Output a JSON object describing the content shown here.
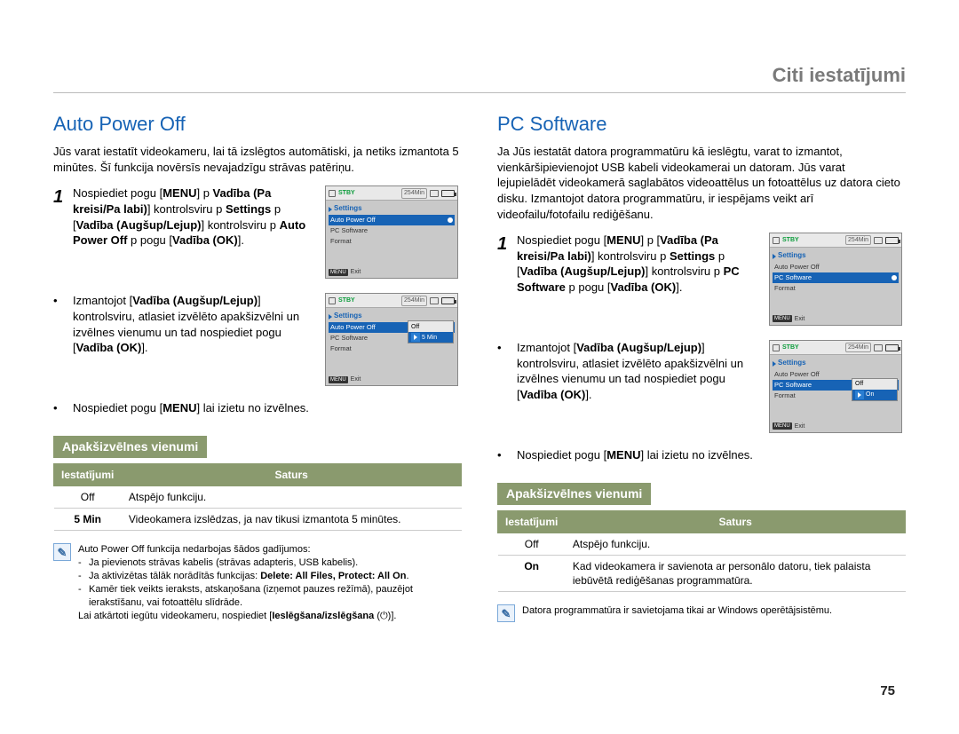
{
  "breadcrumb": "Citi iestatījumi",
  "page_number": "75",
  "colors": {
    "heading_blue": "#1763b5",
    "badge_green": "#8a9a6e",
    "note_border": "#7aa8d8",
    "note_fill": "#eaf2fb",
    "screen_bg": "#c9c9c9",
    "screen_topbar": "#e9e9e9",
    "stby_green": "#0a9c3a",
    "highlight_blue": "#1763b5",
    "text": "#000000",
    "rule": "#bbbbbb"
  },
  "left": {
    "title": "Auto Power Off",
    "intro": "Jūs varat iestatīt videokameru, lai tā izslēgtos automātiski, ja netiks izmantota 5 minūtes. Šī funkcija novērsīs nevajadzīgu strāvas patēriņu.",
    "steps": [
      {
        "num": "1",
        "boldSeq": [
          "Nospiediet pogu [",
          "MENU",
          "]  p ",
          "Vadība (Pa kreisi/Pa labi)",
          "] kontrolsviru  p ",
          "Settings",
          "  p [",
          "Vadība (Augšup/Lejup)",
          "] kontrolsviru  p ",
          "Auto Power Off",
          "  p pogu [",
          "Vadība (OK)",
          "]."
        ]
      },
      {
        "bullet": "•",
        "boldSeq": [
          "Izmantojot [",
          "Vadība (Augšup/Lejup)",
          "] kontrolsviru, atlasiet izvēlēto apakšizvēlni un izvēlnes vienumu un tad nospiediet pogu [",
          "Vadība (OK)",
          "]."
        ]
      },
      {
        "bullet": "•",
        "boldSeq": [
          "Nospiediet pogu [",
          "MENU",
          "] lai izietu no izvēlnes."
        ]
      }
    ],
    "sub_title": "Apakšizvēlnes vienumi",
    "table": {
      "headers": [
        "Iestatījumi",
        "Saturs"
      ],
      "rows": [
        [
          "Off",
          "Atspējo funkciju."
        ],
        [
          "5 Min",
          "Videokamera izslēdzas, ja nav tikusi izmantota 5 minūtes."
        ]
      ]
    },
    "note": {
      "lead": "Auto Power Off funkcija nedarbojas šādos gadījumos:",
      "items": [
        "Ja pievienots strāvas kabelis (strāvas adapteris, USB kabelis).",
        {
          "pre": "Ja aktivizētas tālāk norādītās funkcijas: ",
          "bold": "Delete: All Files, Protect: All On",
          "post": "."
        },
        "Kamēr tiek veikts ieraksts, atskaņošana (izņemot pauzes režīmā), pauzējot ierakstīšanu, vai fotoattēlu slīdrāde."
      ],
      "tail_pre": "Lai atkārtoti iegūtu videokameru, nospiediet [",
      "tail_bold": "Ieslēgšana/izslēgšana",
      "tail_post": " (⏻)]."
    },
    "screens": {
      "common": {
        "stby": "STBY",
        "time": "254Min",
        "section": "Settings",
        "exit": "Exit",
        "menu_tag": "MENU"
      },
      "s1": {
        "rows": [
          {
            "label": "Auto Power Off",
            "hl": true
          },
          {
            "label": "PC Software"
          },
          {
            "label": "Format"
          }
        ]
      },
      "s2": {
        "rows": [
          {
            "label": "Auto Power Off",
            "hl": true
          },
          {
            "label": "PC Software"
          },
          {
            "label": "Format"
          }
        ],
        "panel": {
          "at": 0,
          "rows": [
            {
              "label": "Off"
            },
            {
              "label": "5 Min",
              "sel": true
            }
          ]
        }
      }
    }
  },
  "right": {
    "title": "PC Software",
    "intro": "Ja Jūs iestatāt datora programmatūru kā ieslēgtu, varat to izmantot, vienkāršipievienojot USB kabeli videokamerai un datoram. Jūs varat lejupielādēt videokamerā saglabātos videoattēlus un fotoattēlus uz datora cieto disku. Izmantojot datora programmatūru, ir iespējams veikt arī videofailu/fotofailu rediģēšanu.",
    "steps": [
      {
        "num": "1",
        "boldSeq": [
          "Nospiediet pogu [",
          "MENU",
          "]  p [",
          "Vadība (Pa kreisi/Pa labi)",
          "] kontrolsviru  p ",
          "Settings",
          "  p [",
          "Vadība (Augšup/Lejup)",
          "] kontrolsviru  p ",
          "PC Software",
          "  p pogu [",
          "Vadība (OK)",
          "]."
        ]
      },
      {
        "bullet": "•",
        "boldSeq": [
          "Izmantojot [",
          "Vadība (Augšup/Lejup)",
          "] kontrolsviru, atlasiet izvēlēto apakšizvēlni un izvēlnes vienumu un tad nospiediet pogu [",
          "Vadība (OK)",
          "]."
        ]
      },
      {
        "bullet": "•",
        "boldSeq": [
          "Nospiediet pogu [",
          "MENU",
          "] lai izietu no izvēlnes."
        ]
      }
    ],
    "sub_title": "Apakšizvēlnes vienumi",
    "table": {
      "headers": [
        "Iestatījumi",
        "Saturs"
      ],
      "rows": [
        [
          "Off",
          "Atspējo funkciju."
        ],
        [
          "On",
          "Kad videokamera ir savienota ar personālo datoru, tiek palaista iebūvētā rediģēšanas programmatūra."
        ]
      ]
    },
    "note": {
      "text": "Datora programmatūra ir savietojama tikai ar Windows operētājsistēmu."
    },
    "screens": {
      "common": {
        "stby": "STBY",
        "time": "254Min",
        "section": "Settings",
        "exit": "Exit",
        "menu_tag": "MENU"
      },
      "s1": {
        "rows": [
          {
            "label": "Auto Power Off"
          },
          {
            "label": "PC Software",
            "hl": true
          },
          {
            "label": "Format"
          }
        ]
      },
      "s2": {
        "rows": [
          {
            "label": "Auto Power Off"
          },
          {
            "label": "PC Software",
            "hl": true
          },
          {
            "label": "Format"
          }
        ],
        "panel": {
          "at": 1,
          "rows": [
            {
              "label": "Off"
            },
            {
              "label": "On",
              "sel": true
            }
          ]
        }
      }
    }
  }
}
